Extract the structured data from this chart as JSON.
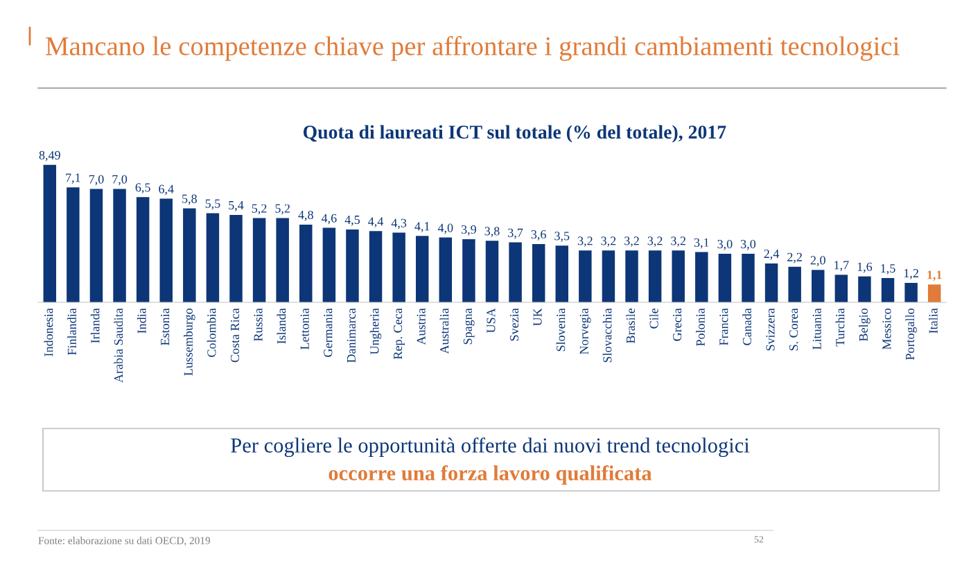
{
  "chart_data": {
    "type": "bar",
    "title": "Mancano le competenze chiave per affrontare i grandi cambiamenti tecnologici",
    "subtitle": "Quota di laureati ICT sul totale (% del totale), 2017",
    "categories": [
      "Indonesia",
      "Finlandia",
      "Irlanda",
      "Arabia Saudita",
      "India",
      "Estonia",
      "Lussemburgo",
      "Colombia",
      "Costa Rica",
      "Russia",
      "Islanda",
      "Lettonia",
      "Germania",
      "Danimarca",
      "Ungheria",
      "Rep. Ceca",
      "Austria",
      "Australia",
      "Spagna",
      "USA",
      "Svezia",
      "UK",
      "Slovenia",
      "Norvegia",
      "Slovacchia",
      "Brasile",
      "Cile",
      "Grecia",
      "Polonia",
      "Francia",
      "Canada",
      "Svizzera",
      "S. Corea",
      "Lituania",
      "Turchia",
      "Belgio",
      "Messico",
      "Portogallo",
      "Italia"
    ],
    "values": [
      8.49,
      7.1,
      7.0,
      7.0,
      6.5,
      6.4,
      5.8,
      5.5,
      5.4,
      5.2,
      5.2,
      4.8,
      4.6,
      4.5,
      4.4,
      4.3,
      4.1,
      4.0,
      3.9,
      3.8,
      3.7,
      3.6,
      3.5,
      3.2,
      3.2,
      3.2,
      3.2,
      3.2,
      3.1,
      3.0,
      3.0,
      2.4,
      2.2,
      2.0,
      1.7,
      1.6,
      1.5,
      1.2,
      1.1
    ],
    "value_labels": [
      "8,49",
      "7,1",
      "7,0",
      "7,0",
      "6,5",
      "6,4",
      "5,8",
      "5,5",
      "5,4",
      "5,2",
      "5,2",
      "4,8",
      "4,6",
      "4,5",
      "4,4",
      "4,3",
      "4,1",
      "4,0",
      "3,9",
      "3,8",
      "3,7",
      "3,6",
      "3,5",
      "3,2",
      "3,2",
      "3,2",
      "3,2",
      "3,2",
      "3,1",
      "3,0",
      "3,0",
      "2,4",
      "2,2",
      "2,0",
      "1,7",
      "1,6",
      "1,5",
      "1,2",
      "1,1"
    ],
    "colors": [
      "#0c3677",
      "#0c3677",
      "#0c3677",
      "#0c3677",
      "#0c3677",
      "#0c3677",
      "#0c3677",
      "#0c3677",
      "#0c3677",
      "#0c3677",
      "#0c3677",
      "#0c3677",
      "#0c3677",
      "#0c3677",
      "#0c3677",
      "#0c3677",
      "#0c3677",
      "#0c3677",
      "#0c3677",
      "#0c3677",
      "#0c3677",
      "#0c3677",
      "#0c3677",
      "#0c3677",
      "#0c3677",
      "#0c3677",
      "#0c3677",
      "#0c3677",
      "#0c3677",
      "#0c3677",
      "#0c3677",
      "#0c3677",
      "#0c3677",
      "#0c3677",
      "#0c3677",
      "#0c3677",
      "#0c3677",
      "#0c3677",
      "#e07b39"
    ],
    "annotations": [
      "Per cogliere le opportunità offerte dai nuovi trend tecnologici",
      "occorre una forza lavoro qualificata",
      "Fonte: elaborazione su dati OECD, 2019",
      "52"
    ],
    "grid": false,
    "legend": false
  }
}
